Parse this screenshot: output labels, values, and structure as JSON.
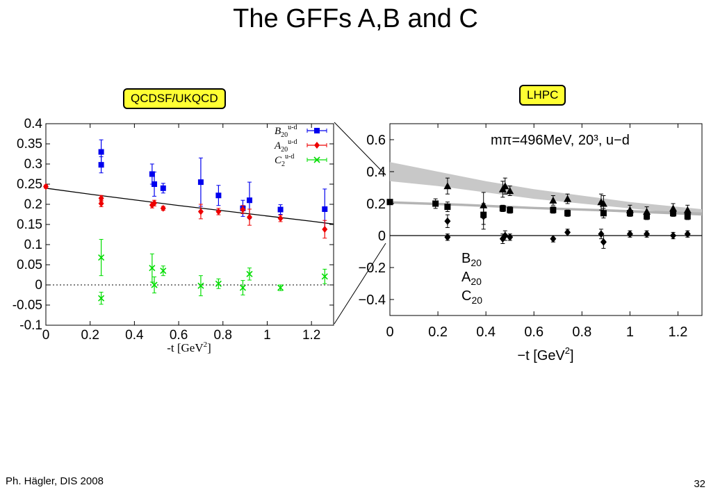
{
  "title": "The GFFs A,B and C",
  "left_tag": "QCDSF/UKQCD",
  "right_tag": "LHPC",
  "footer": {
    "author": "Ph. Hägler, DIS 2008",
    "page": "32"
  },
  "chart_data": [
    {
      "type": "scatter",
      "xlabel_prefix": "-t [GeV",
      "xlabel_sup": "2",
      "xlabel_suffix": "]",
      "xlim": [
        0,
        1.3
      ],
      "ylim": [
        -0.1,
        0.4
      ],
      "xticks": [
        0,
        0.2,
        0.4,
        0.6,
        0.8,
        1,
        1.2
      ],
      "xtick_labels": [
        "0",
        "0.2",
        "0.4",
        "0.6",
        "0.8",
        "1",
        "1.2"
      ],
      "yticks": [
        -0.1,
        -0.05,
        0,
        0.05,
        0.1,
        0.15,
        0.2,
        0.25,
        0.3,
        0.35,
        0.4
      ],
      "ytick_labels": [
        "-0.1",
        "-0.05",
        "0",
        "0.05",
        "0.1",
        "0.15",
        "0.2",
        "0.25",
        "0.3",
        "0.35",
        "0.4"
      ],
      "legend_position": "top-right",
      "series": [
        {
          "name": "B",
          "name_sub": "20",
          "name_sup": "u-d",
          "color": "#0000ee",
          "marker": "square",
          "points": [
            [
              0.25,
              0.33,
              0.03
            ],
            [
              0.25,
              0.298,
              0.02
            ],
            [
              0.48,
              0.275,
              0.025
            ],
            [
              0.49,
              0.25,
              0.03
            ],
            [
              0.53,
              0.24,
              0.012
            ],
            [
              0.7,
              0.255,
              0.06
            ],
            [
              0.78,
              0.222,
              0.025
            ],
            [
              0.89,
              0.19,
              0.02
            ],
            [
              0.92,
              0.21,
              0.045
            ],
            [
              1.06,
              0.187,
              0.012
            ],
            [
              1.26,
              0.188,
              0.05
            ]
          ]
        },
        {
          "name": "A",
          "name_sub": "20",
          "name_sup": "u-d",
          "color": "#ee0000",
          "marker": "diamond",
          "points": [
            [
              0,
              0.244,
              0.004
            ],
            [
              0.25,
              0.215,
              0.007
            ],
            [
              0.25,
              0.202,
              0.008
            ],
            [
              0.48,
              0.198,
              0.007
            ],
            [
              0.49,
              0.203,
              0.007
            ],
            [
              0.53,
              0.19,
              0.005
            ],
            [
              0.7,
              0.182,
              0.018
            ],
            [
              0.78,
              0.182,
              0.008
            ],
            [
              0.89,
              0.187,
              0.01
            ],
            [
              0.92,
              0.168,
              0.02
            ],
            [
              1.06,
              0.165,
              0.008
            ],
            [
              1.26,
              0.138,
              0.022
            ]
          ]
        },
        {
          "name": "C",
          "name_sub": "2",
          "name_sup": "u-d",
          "color": "#00dd00",
          "marker": "x",
          "points": [
            [
              0.25,
              0.068,
              0.045
            ],
            [
              0.25,
              -0.033,
              0.015
            ],
            [
              0.48,
              0.042,
              0.035
            ],
            [
              0.49,
              0.0,
              0.02
            ],
            [
              0.53,
              0.035,
              0.012
            ],
            [
              0.7,
              -0.002,
              0.025
            ],
            [
              0.78,
              0.003,
              0.012
            ],
            [
              0.89,
              -0.007,
              0.018
            ],
            [
              0.92,
              0.027,
              0.015
            ],
            [
              1.06,
              -0.007,
              0.007
            ],
            [
              1.26,
              0.021,
              0.018
            ]
          ]
        }
      ],
      "fit_line": [
        [
          0,
          0.24
        ],
        [
          0.2,
          0.225
        ],
        [
          0.4,
          0.211
        ],
        [
          0.6,
          0.197
        ],
        [
          0.8,
          0.184
        ],
        [
          1.0,
          0.171
        ],
        [
          1.2,
          0.158
        ],
        [
          1.3,
          0.151
        ]
      ]
    },
    {
      "type": "scatter",
      "annotation": "mπ=496MeV, 20³, u−d",
      "xlabel_prefix": "−t [GeV",
      "xlabel_sup": "2",
      "xlabel_suffix": "]",
      "xlim": [
        0,
        1.3
      ],
      "ylim": [
        -0.5,
        0.7
      ],
      "xticks": [
        0,
        0.2,
        0.4,
        0.6,
        0.8,
        1,
        1.2
      ],
      "xtick_labels": [
        "0",
        "0.2",
        "0.4",
        "0.6",
        "0.8",
        "1",
        "1.2"
      ],
      "yticks": [
        -0.4,
        -0.2,
        0,
        0.2,
        0.4,
        0.6
      ],
      "ytick_labels": [
        "−0.4",
        "−0.2",
        "0",
        "0.2",
        "0.4",
        "0.6"
      ],
      "legend_position": "bottom-left",
      "series": [
        {
          "name": "B",
          "name_sub": "20",
          "color": "#000000",
          "marker": "triangle",
          "points": [
            [
              0.24,
              0.31,
              0.05
            ],
            [
              0.39,
              0.19,
              0.08
            ],
            [
              0.47,
              0.29,
              0.05
            ],
            [
              0.48,
              0.31,
              0.05
            ],
            [
              0.5,
              0.28,
              0.03
            ],
            [
              0.68,
              0.22,
              0.03
            ],
            [
              0.74,
              0.23,
              0.03
            ],
            [
              0.88,
              0.21,
              0.05
            ],
            [
              0.89,
              0.2,
              0.05
            ],
            [
              1.0,
              0.16,
              0.03
            ],
            [
              1.07,
              0.15,
              0.03
            ],
            [
              1.18,
              0.17,
              0.03
            ],
            [
              1.24,
              0.16,
              0.03
            ]
          ]
        },
        {
          "name": "A",
          "name_sub": "20",
          "color": "#000000",
          "marker": "square",
          "points": [
            [
              0,
              0.21,
              0.01
            ],
            [
              0.19,
              0.2,
              0.03
            ],
            [
              0.24,
              0.18,
              0.03
            ],
            [
              0.39,
              0.13,
              0.06
            ],
            [
              0.47,
              0.17,
              0.02
            ],
            [
              0.5,
              0.16,
              0.02
            ],
            [
              0.68,
              0.16,
              0.02
            ],
            [
              0.74,
              0.14,
              0.02
            ],
            [
              0.89,
              0.14,
              0.03
            ],
            [
              1.0,
              0.14,
              0.02
            ],
            [
              1.07,
              0.12,
              0.02
            ],
            [
              1.18,
              0.14,
              0.02
            ],
            [
              1.24,
              0.12,
              0.02
            ]
          ]
        },
        {
          "name": "C",
          "name_sub": "20",
          "color": "#000000",
          "marker": "diamond",
          "points": [
            [
              0.24,
              0.09,
              0.04
            ],
            [
              0.24,
              -0.01,
              0.02
            ],
            [
              0.39,
              0.12,
              0.08
            ],
            [
              0.47,
              -0.02,
              0.03
            ],
            [
              0.48,
              0.0,
              0.03
            ],
            [
              0.5,
              -0.01,
              0.02
            ],
            [
              0.68,
              -0.02,
              0.02
            ],
            [
              0.74,
              0.02,
              0.02
            ],
            [
              0.88,
              0.01,
              0.03
            ],
            [
              0.89,
              -0.04,
              0.04
            ],
            [
              1.0,
              0.01,
              0.02
            ],
            [
              1.07,
              0.01,
              0.02
            ],
            [
              1.18,
              0.0,
              0.02
            ],
            [
              1.24,
              0.01,
              0.02
            ]
          ]
        }
      ],
      "band_upper": [
        [
          0,
          0.46
        ],
        [
          0.2,
          0.4
        ],
        [
          0.4,
          0.34
        ],
        [
          0.6,
          0.29
        ],
        [
          0.8,
          0.25
        ],
        [
          1.0,
          0.21
        ],
        [
          1.2,
          0.18
        ],
        [
          1.3,
          0.165
        ]
      ],
      "band_lower": [
        [
          0,
          0.34
        ],
        [
          0.2,
          0.31
        ],
        [
          0.4,
          0.27
        ],
        [
          0.6,
          0.23
        ],
        [
          0.8,
          0.2
        ],
        [
          1.0,
          0.17
        ],
        [
          1.2,
          0.14
        ],
        [
          1.3,
          0.13
        ]
      ],
      "a_band_upper": [
        [
          0,
          0.215
        ],
        [
          0.3,
          0.2
        ],
        [
          0.6,
          0.18
        ],
        [
          0.9,
          0.165
        ],
        [
          1.3,
          0.145
        ]
      ],
      "a_band_lower": [
        [
          0,
          0.2
        ],
        [
          0.3,
          0.185
        ],
        [
          0.6,
          0.165
        ],
        [
          0.9,
          0.15
        ],
        [
          1.3,
          0.125
        ]
      ]
    }
  ]
}
